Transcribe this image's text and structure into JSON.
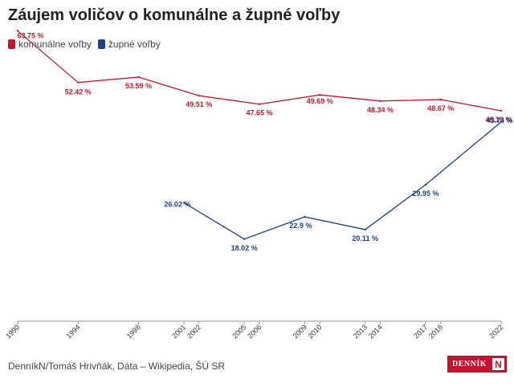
{
  "title": "Záujem voličov o komunálne a župné voľby",
  "source": "DenníkN/Tomáš Hrivňák, Dáta – Wikipedia, ŠÚ SR",
  "logo": {
    "text": "DENNÍK",
    "mark": "N"
  },
  "colors": {
    "komunalne": "#c0182e",
    "zupne": "#1f3f86",
    "axis": "#999999",
    "text": "#333333"
  },
  "chart_data": {
    "type": "line",
    "title": "Záujem voličov o komunálne a župné voľby",
    "xlabel": "",
    "ylabel": "",
    "xlim": [
      1990,
      2022
    ],
    "ylim": [
      0,
      67
    ],
    "grid": false,
    "legend": "top-left",
    "x_ticks": [
      1990,
      1994,
      1998,
      2001,
      2002,
      2005,
      2006,
      2009,
      2010,
      2013,
      2014,
      2017,
      2018,
      2022
    ],
    "series": [
      {
        "name": "komunálne voľby",
        "color": "#c0182e",
        "x": [
          1990,
          1994,
          1998,
          2002,
          2006,
          2010,
          2014,
          2018,
          2022
        ],
        "values": [
          63.75,
          52.42,
          53.59,
          49.51,
          47.65,
          49.69,
          48.34,
          48.67,
          46.19
        ],
        "labels": [
          "63.75 %",
          "52.42 %",
          "53.59 %",
          "49.51 %",
          "47.65 %",
          "49.69 %",
          "48.34 %",
          "48.67 %",
          "46.19 %"
        ]
      },
      {
        "name": "župné voľby",
        "color": "#1f3f86",
        "x": [
          2001,
          2005,
          2009,
          2013,
          2017,
          2022
        ],
        "values": [
          26.02,
          18.02,
          22.9,
          20.11,
          29.95,
          43.74
        ],
        "labels": [
          "26.02 %",
          "18.02 %",
          "22.9 %",
          "20.11 %",
          "29.95 %",
          "43.74 %"
        ]
      }
    ]
  }
}
